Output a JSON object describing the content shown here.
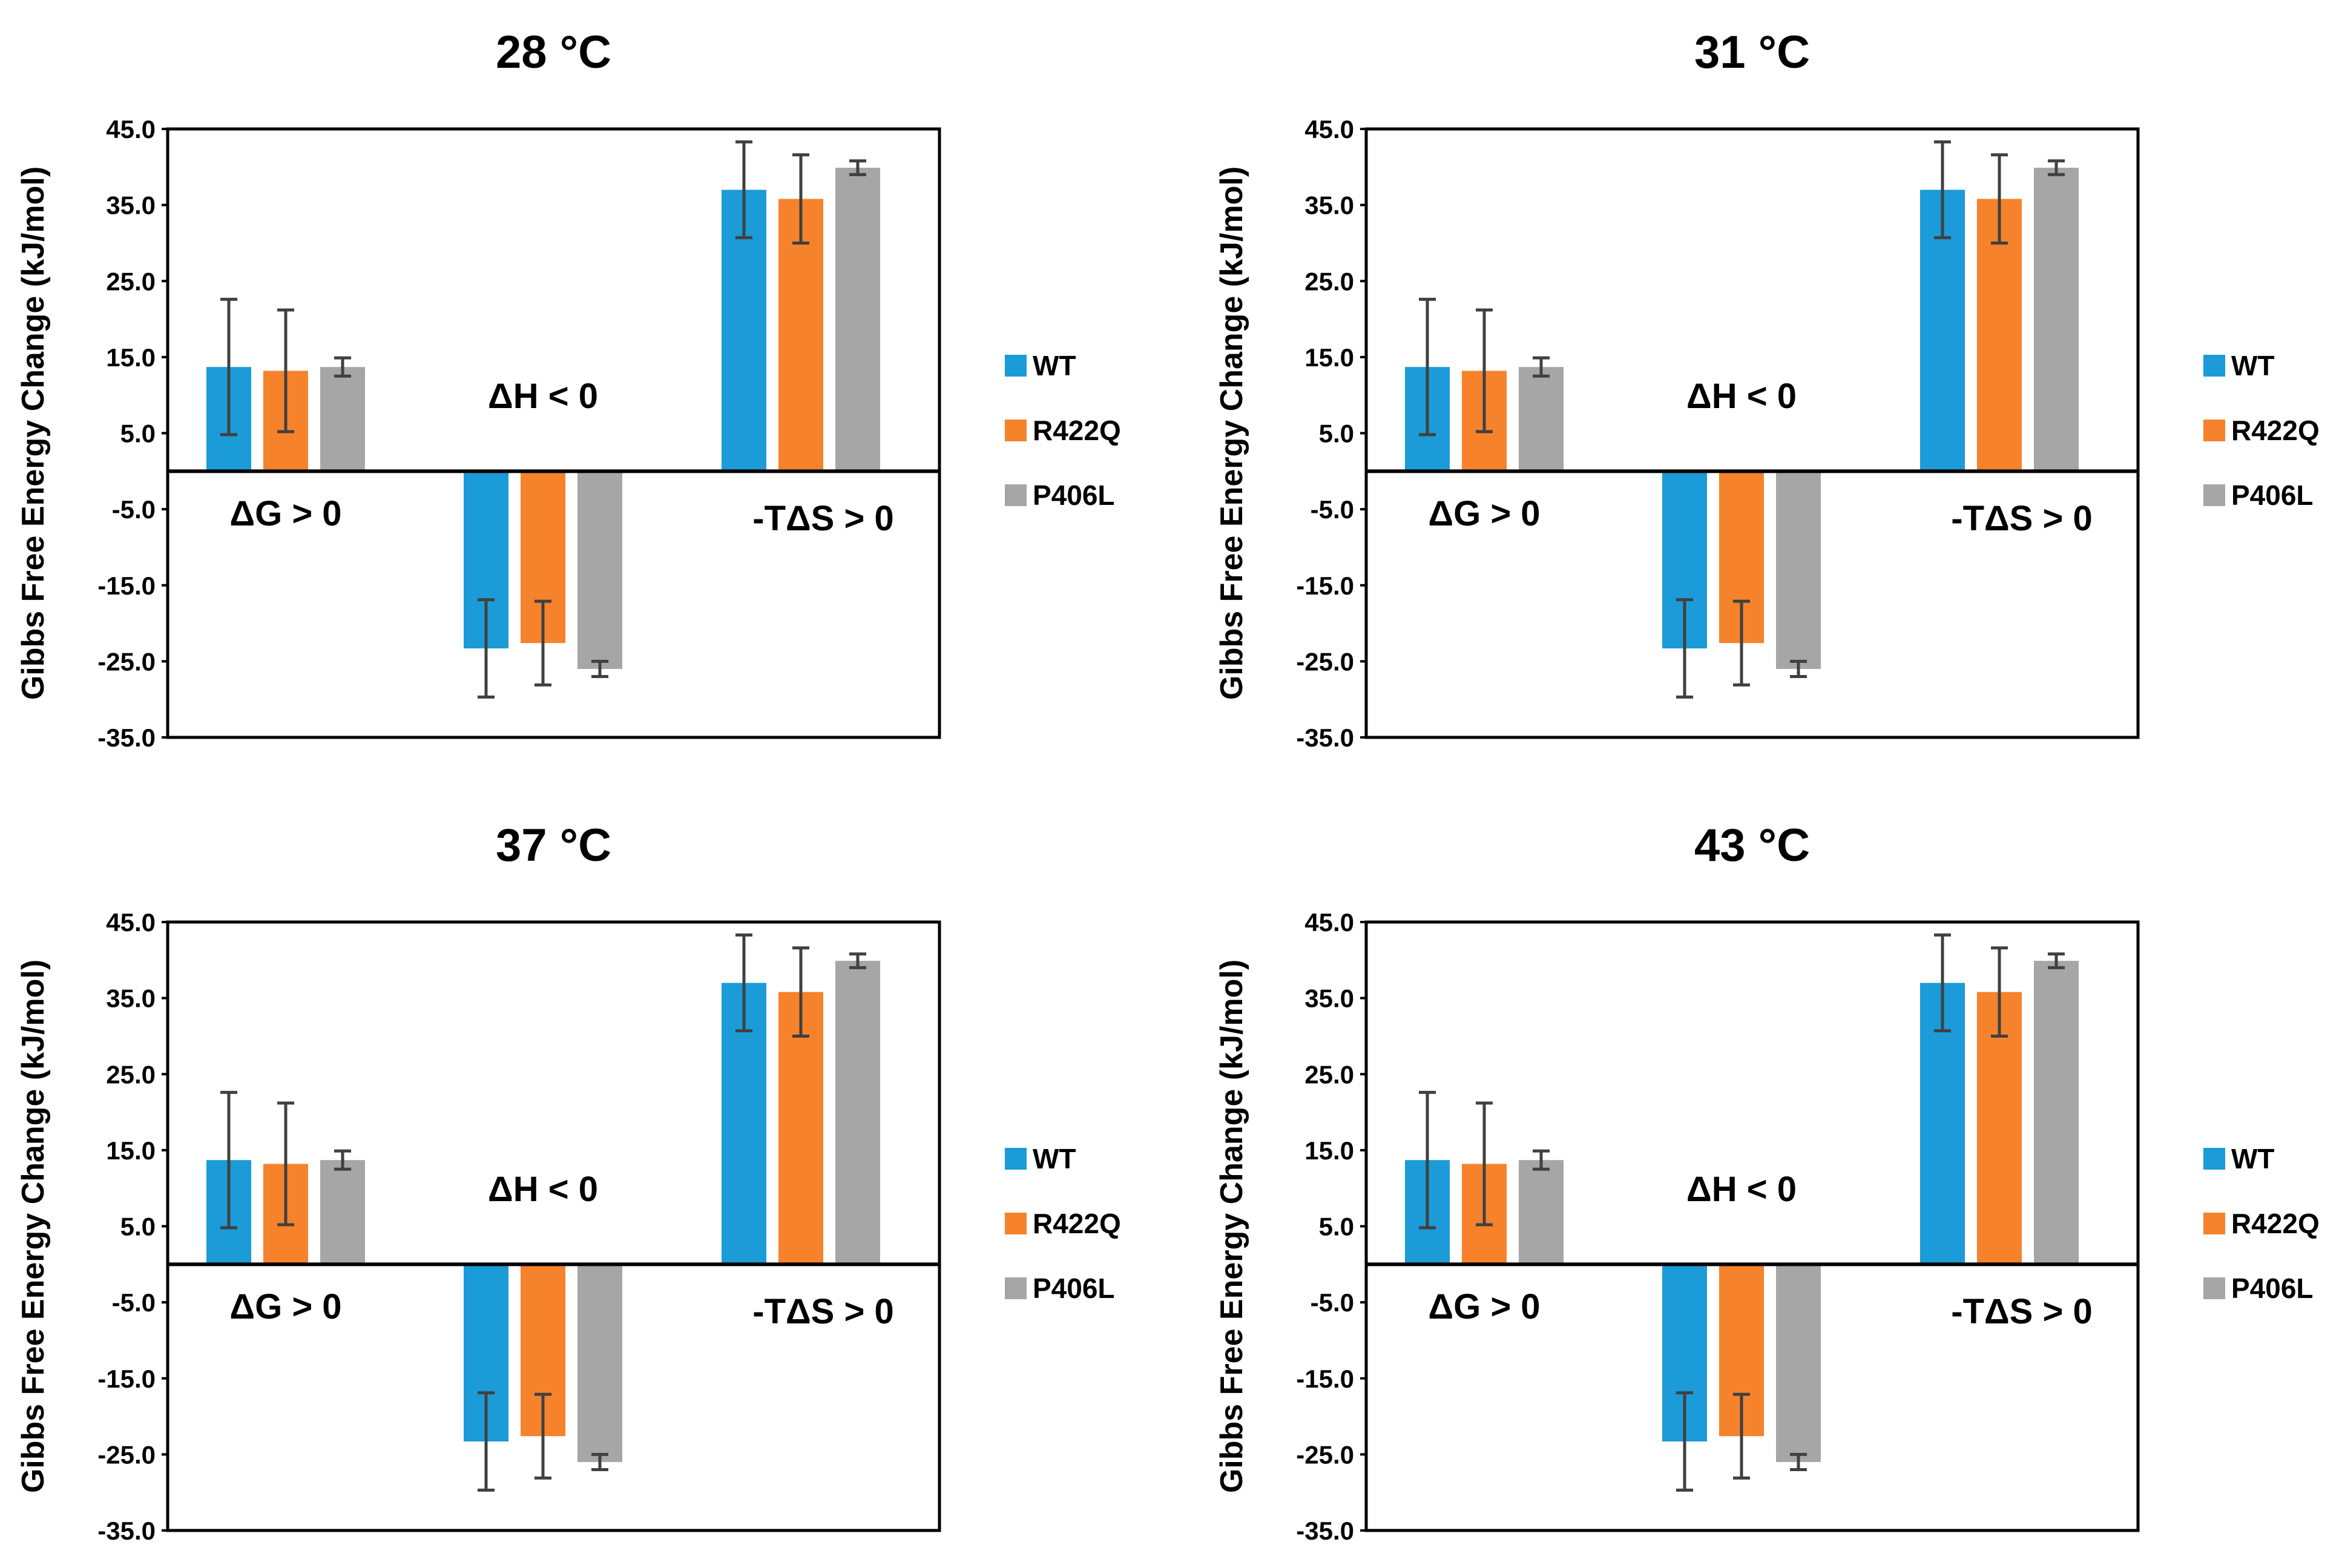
{
  "colors": {
    "WT": "#1B9BD7",
    "R422Q": "#F6822B",
    "P406L": "#A6A6A6",
    "error_bar": "#404040",
    "axis": "#000000"
  },
  "chart_data": [
    {
      "type": "bar",
      "title": "28 °C",
      "ylabel": "Gibbs Free Energy Change (kJ/mol)",
      "ylim": [
        -35.0,
        45.0
      ],
      "y_ticks": [
        "45.0",
        "35.0",
        "25.0",
        "15.0",
        "5.0",
        "-5.0",
        "-15.0",
        "-25.0",
        "-35.0"
      ],
      "grid": false,
      "legend_position": "right",
      "categories": [
        "ΔG > 0",
        "ΔH < 0",
        "-TΔS > 0"
      ],
      "series": [
        {
          "name": "WT",
          "values": [
            13.7,
            -23.3,
            37.0
          ],
          "errors": [
            8.9,
            6.4,
            6.3
          ]
        },
        {
          "name": "R422Q",
          "values": [
            13.2,
            -22.6,
            35.8
          ],
          "errors": [
            8.0,
            5.5,
            5.8
          ]
        },
        {
          "name": "P406L",
          "values": [
            13.7,
            -26.0,
            39.9
          ],
          "errors": [
            1.2,
            1.0,
            0.9
          ]
        }
      ],
      "annotations": [
        "ΔG > 0",
        "ΔH < 0",
        "-TΔS > 0"
      ]
    },
    {
      "type": "bar",
      "title": "31 °C",
      "ylabel": "Gibbs Free Energy Change (kJ/mol)",
      "ylim": [
        -35.0,
        45.0
      ],
      "y_ticks": [
        "45.0",
        "35.0",
        "25.0",
        "15.0",
        "5.0",
        "-5.0",
        "-15.0",
        "-25.0",
        "-35.0"
      ],
      "grid": false,
      "legend_position": "right",
      "categories": [
        "ΔG > 0",
        "ΔH < 0",
        "-TΔS > 0"
      ],
      "series": [
        {
          "name": "WT",
          "values": [
            13.7,
            -23.3,
            37.0
          ],
          "errors": [
            8.9,
            6.4,
            6.3
          ]
        },
        {
          "name": "R422Q",
          "values": [
            13.2,
            -22.6,
            35.8
          ],
          "errors": [
            8.0,
            5.5,
            5.8
          ]
        },
        {
          "name": "P406L",
          "values": [
            13.7,
            -26.0,
            39.9
          ],
          "errors": [
            1.2,
            1.0,
            0.9
          ]
        }
      ],
      "annotations": [
        "ΔG > 0",
        "ΔH < 0",
        "-TΔS > 0"
      ]
    },
    {
      "type": "bar",
      "title": "37 °C",
      "ylabel": "Gibbs Free Energy Change (kJ/mol)",
      "ylim": [
        -35.0,
        45.0
      ],
      "y_ticks": [
        "45.0",
        "35.0",
        "25.0",
        "15.0",
        "5.0",
        "-5.0",
        "-15.0",
        "-25.0",
        "-35.0"
      ],
      "grid": false,
      "legend_position": "right",
      "categories": [
        "ΔG > 0",
        "ΔH < 0",
        "-TΔS > 0"
      ],
      "series": [
        {
          "name": "WT",
          "values": [
            13.7,
            -23.3,
            37.0
          ],
          "errors": [
            8.9,
            6.4,
            6.3
          ]
        },
        {
          "name": "R422Q",
          "values": [
            13.2,
            -22.6,
            35.8
          ],
          "errors": [
            8.0,
            5.5,
            5.8
          ]
        },
        {
          "name": "P406L",
          "values": [
            13.7,
            -26.0,
            39.9
          ],
          "errors": [
            1.2,
            1.0,
            0.9
          ]
        }
      ],
      "annotations": [
        "ΔG > 0",
        "ΔH < 0",
        "-TΔS > 0"
      ]
    },
    {
      "type": "bar",
      "title": "43 °C",
      "ylabel": "Gibbs Free Energy Change (kJ/mol)",
      "ylim": [
        -35.0,
        45.0
      ],
      "y_ticks": [
        "45.0",
        "35.0",
        "25.0",
        "15.0",
        "5.0",
        "-5.0",
        "-15.0",
        "-25.0",
        "-35.0"
      ],
      "grid": false,
      "legend_position": "right",
      "categories": [
        "ΔG > 0",
        "ΔH < 0",
        "-TΔS > 0"
      ],
      "series": [
        {
          "name": "WT",
          "values": [
            13.7,
            -23.3,
            37.0
          ],
          "errors": [
            8.9,
            6.4,
            6.3
          ]
        },
        {
          "name": "R422Q",
          "values": [
            13.2,
            -22.6,
            35.8
          ],
          "errors": [
            8.0,
            5.5,
            5.8
          ]
        },
        {
          "name": "P406L",
          "values": [
            13.7,
            -26.0,
            39.9
          ],
          "errors": [
            1.2,
            1.0,
            0.9
          ]
        }
      ],
      "annotations": [
        "ΔG > 0",
        "ΔH < 0",
        "-TΔS > 0"
      ]
    }
  ]
}
